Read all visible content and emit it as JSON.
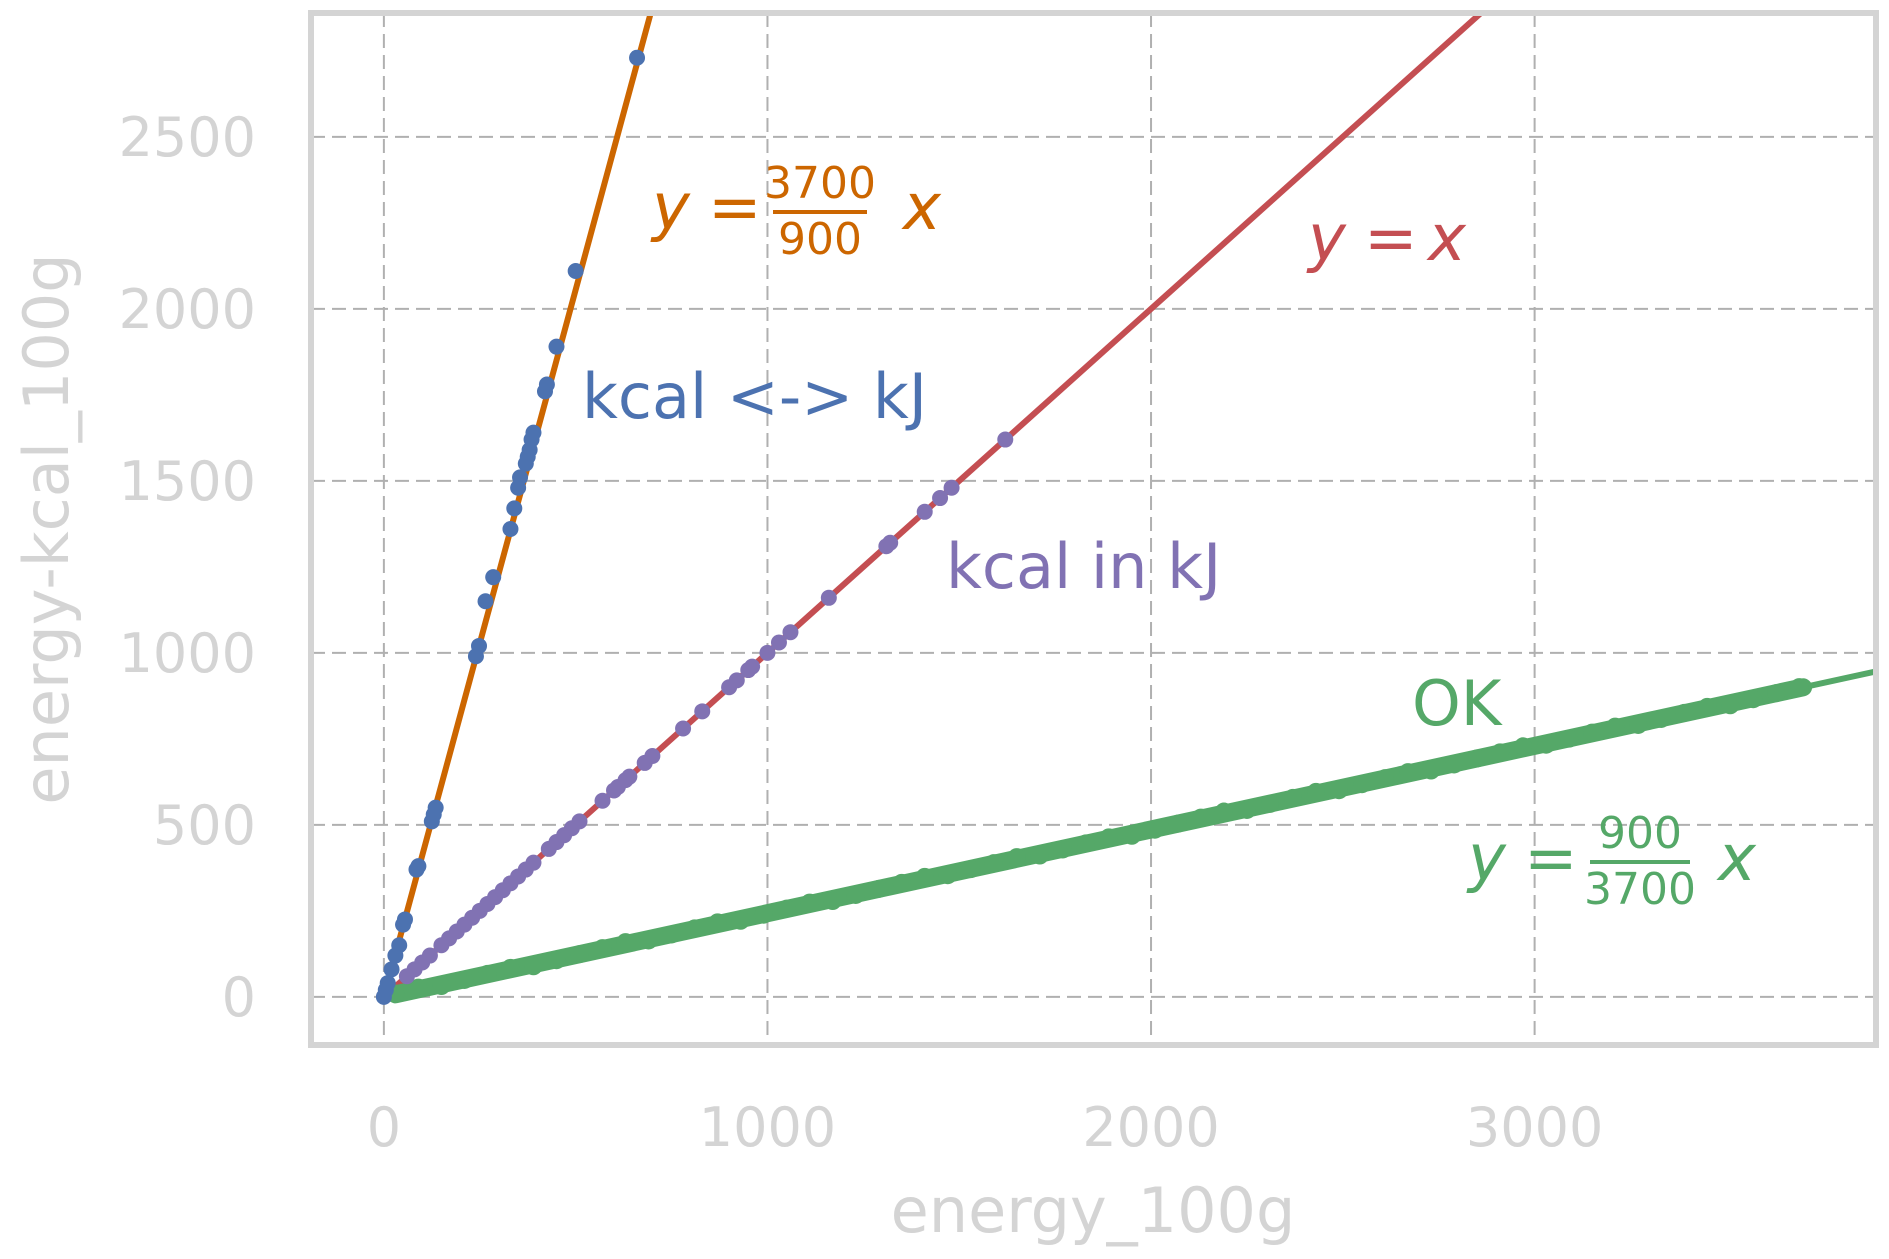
{
  "chart_data": {
    "type": "scatter",
    "xlabel": "energy_100g",
    "ylabel": "energy-kcal_100g",
    "xlim": [
      -190,
      3890
    ],
    "ylim": [
      -140,
      2860
    ],
    "x_ticks": [
      0,
      1000,
      2000,
      3000
    ],
    "y_ticks": [
      0,
      500,
      1000,
      1500,
      2000,
      2500
    ],
    "grid": true,
    "colors": {
      "frame": "#d4d4d4",
      "grid": "#b0b0b0",
      "blue": "#4c72b0",
      "orange": "#cc6600",
      "red": "#c44e52",
      "purple": "#8172b3",
      "green": "#55a868"
    },
    "lines": [
      {
        "label_parts": {
          "lhs": "y",
          "eq": "=",
          "num": "3700",
          "den": "900",
          "var": "x"
        },
        "slope": 4.111,
        "color": "#cc6600"
      },
      {
        "label_parts": {
          "lhs": "y",
          "eq": "=",
          "rhs": "x"
        },
        "slope": 1.0,
        "color": "#c44e52"
      },
      {
        "label_parts": {
          "lhs": "y",
          "eq": "=",
          "num": "900",
          "den": "3700",
          "var": "x"
        },
        "slope": 0.2432,
        "color": "#55a868"
      }
    ],
    "series": [
      {
        "name": "kcal <-> kJ",
        "color": "#4c72b0",
        "points": [
          [
            0,
            0
          ],
          [
            5,
            20
          ],
          [
            10,
            40
          ],
          [
            20,
            80
          ],
          [
            30,
            120
          ],
          [
            40,
            150
          ],
          [
            50,
            210
          ],
          [
            55,
            225
          ],
          [
            85,
            370
          ],
          [
            90,
            380
          ],
          [
            125,
            510
          ],
          [
            130,
            530
          ],
          [
            135,
            550
          ],
          [
            240,
            990
          ],
          [
            248,
            1020
          ],
          [
            265,
            1150
          ],
          [
            285,
            1220
          ],
          [
            330,
            1360
          ],
          [
            340,
            1420
          ],
          [
            350,
            1480
          ],
          [
            355,
            1510
          ],
          [
            370,
            1550
          ],
          [
            375,
            1570
          ],
          [
            380,
            1590
          ],
          [
            385,
            1620
          ],
          [
            390,
            1640
          ],
          [
            420,
            1760
          ],
          [
            425,
            1780
          ],
          [
            450,
            1890
          ],
          [
            500,
            2110
          ],
          [
            660,
            2730
          ]
        ]
      },
      {
        "name": "kcal in kJ",
        "color": "#8172b3",
        "points": [
          [
            60,
            60
          ],
          [
            80,
            80
          ],
          [
            100,
            100
          ],
          [
            120,
            120
          ],
          [
            150,
            150
          ],
          [
            170,
            170
          ],
          [
            190,
            190
          ],
          [
            210,
            210
          ],
          [
            230,
            230
          ],
          [
            250,
            250
          ],
          [
            270,
            270
          ],
          [
            290,
            290
          ],
          [
            310,
            310
          ],
          [
            330,
            330
          ],
          [
            350,
            350
          ],
          [
            370,
            370
          ],
          [
            390,
            390
          ],
          [
            430,
            430
          ],
          [
            450,
            450
          ],
          [
            470,
            470
          ],
          [
            490,
            490
          ],
          [
            510,
            510
          ],
          [
            570,
            570
          ],
          [
            600,
            600
          ],
          [
            610,
            610
          ],
          [
            630,
            630
          ],
          [
            640,
            640
          ],
          [
            680,
            680
          ],
          [
            700,
            700
          ],
          [
            780,
            780
          ],
          [
            830,
            830
          ],
          [
            900,
            900
          ],
          [
            920,
            920
          ],
          [
            950,
            950
          ],
          [
            960,
            960
          ],
          [
            1000,
            1000
          ],
          [
            1030,
            1030
          ],
          [
            1060,
            1060
          ],
          [
            1160,
            1160
          ],
          [
            1310,
            1310
          ],
          [
            1320,
            1320
          ],
          [
            1410,
            1410
          ],
          [
            1450,
            1450
          ],
          [
            1480,
            1480
          ],
          [
            1620,
            1620
          ]
        ]
      },
      {
        "name": "OK",
        "color": "#55a868",
        "x_range": [
          30,
          3700
        ],
        "slope": 0.2432
      }
    ],
    "annotations": [
      {
        "text": "kcal <-> kJ",
        "color": "#4c72b0"
      },
      {
        "text": "kcal in kJ",
        "color": "#8172b3"
      },
      {
        "text": "OK",
        "color": "#55a868"
      }
    ]
  }
}
